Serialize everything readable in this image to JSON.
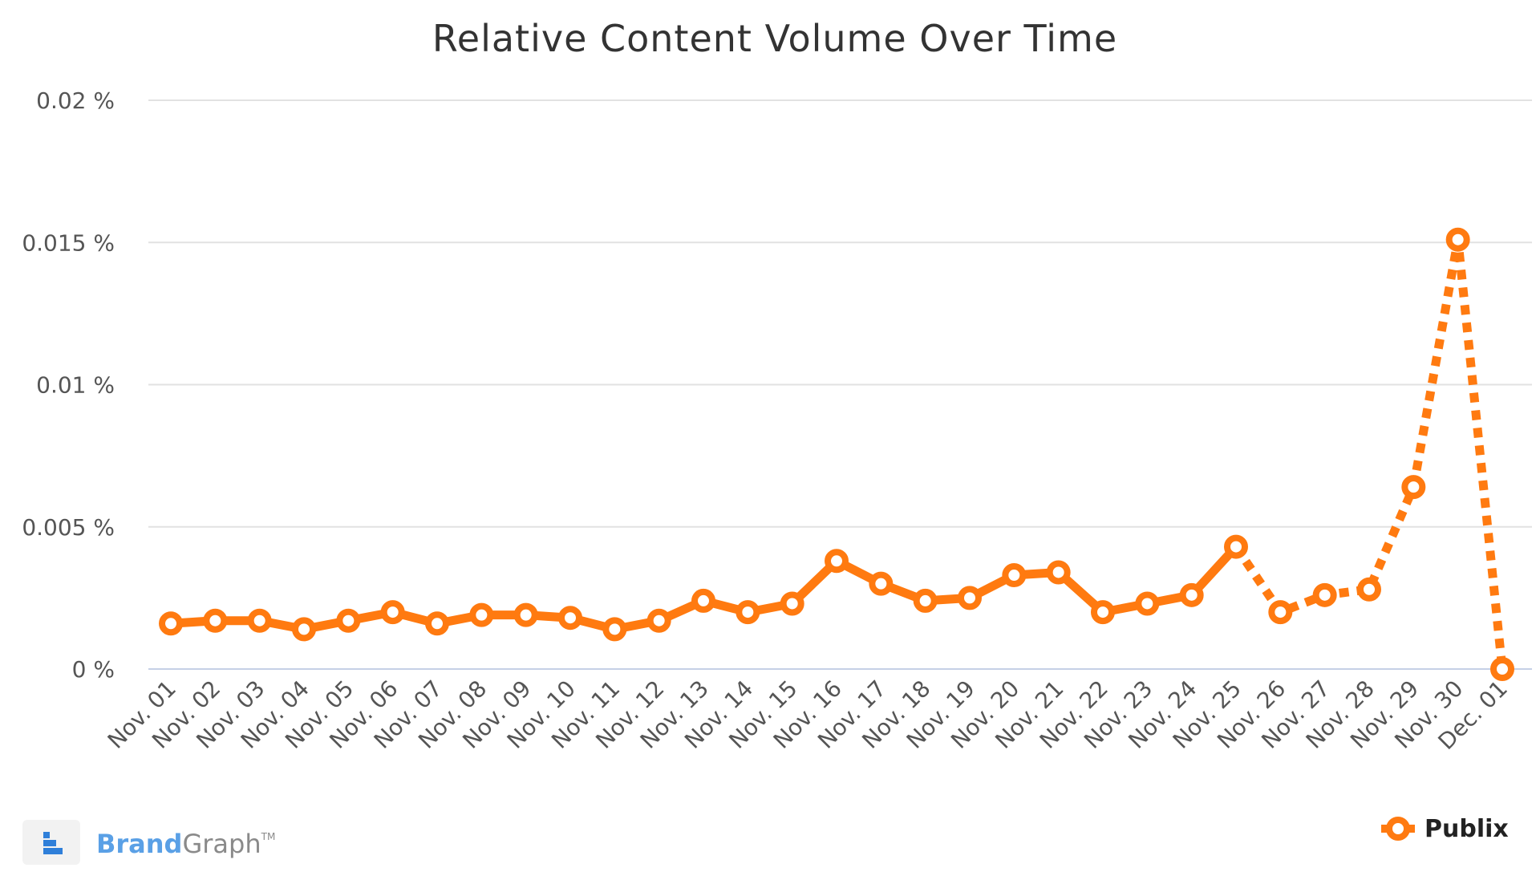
{
  "chart_data": {
    "type": "line",
    "title": "Relative Content Volume Over Time",
    "xlabel": "",
    "ylabel": "",
    "ylim": [
      0,
      0.02
    ],
    "y_ticks": [
      {
        "value": 0,
        "label": "0 %"
      },
      {
        "value": 0.005,
        "label": "0.005 %"
      },
      {
        "value": 0.01,
        "label": "0.01 %"
      },
      {
        "value": 0.015,
        "label": "0.015 %"
      },
      {
        "value": 0.02,
        "label": "0.02 %"
      }
    ],
    "grid": true,
    "legend_position": "bottom-right",
    "categories": [
      "Nov. 01",
      "Nov. 02",
      "Nov. 03",
      "Nov. 04",
      "Nov. 05",
      "Nov. 06",
      "Nov. 07",
      "Nov. 08",
      "Nov. 09",
      "Nov. 10",
      "Nov. 11",
      "Nov. 12",
      "Nov. 13",
      "Nov. 14",
      "Nov. 15",
      "Nov. 16",
      "Nov. 17",
      "Nov. 18",
      "Nov. 19",
      "Nov. 20",
      "Nov. 21",
      "Nov. 22",
      "Nov. 23",
      "Nov. 24",
      "Nov. 25",
      "Nov. 26",
      "Nov. 27",
      "Nov. 28",
      "Nov. 29",
      "Nov. 30",
      "Dec. 01"
    ],
    "series": [
      {
        "name": "Publix",
        "color": "#ff7a10",
        "values": [
          0.0016,
          0.0017,
          0.0017,
          0.0014,
          0.0017,
          0.002,
          0.0016,
          0.0019,
          0.0019,
          0.0018,
          0.0014,
          0.0017,
          0.0024,
          0.002,
          0.0023,
          0.0038,
          0.003,
          0.0024,
          0.0025,
          0.0033,
          0.0034,
          0.002,
          0.0023,
          0.0026,
          0.0043,
          0.002,
          0.0026,
          0.0028,
          0.0064,
          0.0151,
          0.0
        ],
        "dashed_from": "Nov. 25"
      }
    ]
  },
  "branding": {
    "word_a": "Brand",
    "word_b": "Graph",
    "tm": "TM",
    "icon": "brandgraph-logo-icon"
  }
}
